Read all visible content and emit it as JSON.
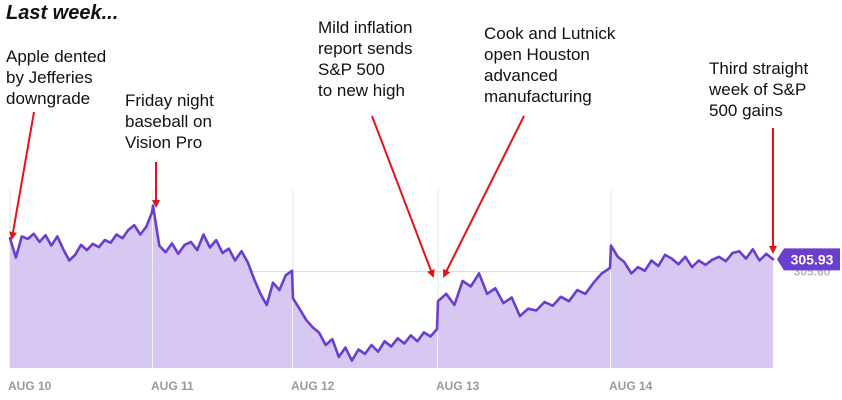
{
  "page_title": "Last week...",
  "annotations": [
    {
      "text": "Apple dented\nby Jefferies\ndowngrade"
    },
    {
      "text": "Friday night\nbaseball on\nVision Pro"
    },
    {
      "text": "Mild inflation\nreport sends\nS&P 500\nto new high"
    },
    {
      "text": "Cook and Lutnick\nopen Houston\nadvanced\nmanufacturing"
    },
    {
      "text": "Third straight\nweek of S&P\n500 gains"
    }
  ],
  "colors": {
    "line": "#6a3fd0",
    "fill": "#d6c8f0",
    "arrow": "#e8101b",
    "badge": "#6a3fd0"
  },
  "chart_data": {
    "type": "area",
    "x_labels": [
      "AUG 10",
      "AUG 11",
      "AUG 12",
      "AUG 13",
      "AUG 14"
    ],
    "y_range": [
      303.0,
      307.8
    ],
    "prev_close_label": "305.60",
    "prev_close": 305.6,
    "last_value_label": "305.93",
    "sessions": [
      {
        "label": "AUG 10",
        "values": [
          306.5,
          305.98,
          306.55,
          306.48,
          306.62,
          306.4,
          306.58,
          306.3,
          306.55,
          306.2,
          305.9,
          306.05,
          306.32,
          306.18,
          306.35,
          306.26,
          306.45,
          306.38,
          306.6,
          306.5,
          306.72,
          306.85,
          306.6,
          306.8,
          307.2
        ]
      },
      {
        "label": "AUG 11",
        "values": [
          307.38,
          306.3,
          306.12,
          306.36,
          306.08,
          306.32,
          306.4,
          306.18,
          306.6,
          306.25,
          306.45,
          306.1,
          306.22,
          305.9,
          306.15,
          305.85,
          305.4,
          305.0,
          304.7,
          305.3,
          305.1,
          305.5,
          305.62
        ]
      },
      {
        "label": "AUG 12",
        "values": [
          304.88,
          304.6,
          304.3,
          304.1,
          303.95,
          303.62,
          303.78,
          303.3,
          303.55,
          303.2,
          303.5,
          303.38,
          303.62,
          303.44,
          303.72,
          303.58,
          303.8,
          303.66,
          303.88,
          303.72,
          303.96,
          303.85,
          304.05
        ]
      },
      {
        "label": "AUG 13",
        "values": [
          304.8,
          305.0,
          304.7,
          305.35,
          305.2,
          305.55,
          305.0,
          305.15,
          304.75,
          304.9,
          304.4,
          304.6,
          304.55,
          304.78,
          304.68,
          304.92,
          304.8,
          305.1,
          305.0,
          305.3,
          305.55,
          305.7
        ]
      },
      {
        "label": "AUG 14",
        "values": [
          306.3,
          306.0,
          305.85,
          305.55,
          305.72,
          305.62,
          305.9,
          305.75,
          306.05,
          305.95,
          305.8,
          306.0,
          305.72,
          305.9,
          305.78,
          305.92,
          306.0,
          305.88,
          306.1,
          306.15,
          305.95,
          306.2,
          305.9,
          306.08,
          305.93
        ]
      }
    ]
  }
}
